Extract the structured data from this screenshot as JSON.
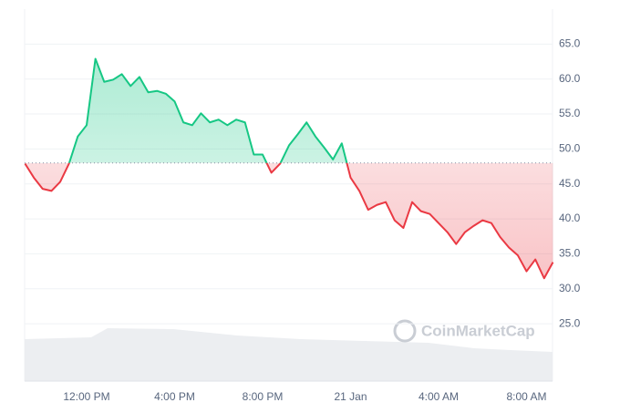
{
  "chart_data": {
    "type": "line",
    "watermark": "CoinMarketCap",
    "categories": [
      null,
      null,
      null,
      null,
      null,
      null,
      null,
      "12:00 PM",
      null,
      null,
      null,
      null,
      null,
      null,
      null,
      null,
      null,
      "4:00 PM",
      null,
      null,
      null,
      null,
      null,
      null,
      null,
      null,
      null,
      "8:00 PM",
      null,
      null,
      null,
      null,
      null,
      null,
      null,
      null,
      null,
      "21 Jan",
      null,
      null,
      null,
      null,
      null,
      null,
      null,
      null,
      null,
      "4:00 AM",
      null,
      null,
      null,
      null,
      null,
      null,
      null,
      null,
      null,
      "8:00 AM",
      null,
      null,
      null
    ],
    "values": [
      47.9,
      45.9,
      44.3,
      44.0,
      45.3,
      47.9,
      51.8,
      53.4,
      62.9,
      59.6,
      59.9,
      60.7,
      59.0,
      60.3,
      58.1,
      58.3,
      57.9,
      56.8,
      53.8,
      53.4,
      55.1,
      53.8,
      54.2,
      53.4,
      54.2,
      53.8,
      49.2,
      49.2,
      46.6,
      47.9,
      50.5,
      52.1,
      53.8,
      51.8,
      50.2,
      48.5,
      50.8,
      45.9,
      44.0,
      41.3,
      42.0,
      42.4,
      39.8,
      38.7,
      42.4,
      41.1,
      40.7,
      39.4,
      38.1,
      36.4,
      38.1,
      39.0,
      39.8,
      39.4,
      37.4,
      35.9,
      34.8,
      32.5,
      34.2,
      31.5,
      33.8
    ],
    "reference_value": 48,
    "up_color": "#16c784",
    "down_color": "#ea3943",
    "ylim": [
      16.8,
      70
    ],
    "yticks": [
      {
        "value": 25,
        "label": "25.0"
      },
      {
        "value": 30,
        "label": "30.0"
      },
      {
        "value": 35,
        "label": "35.0"
      },
      {
        "value": 40,
        "label": "40.0"
      },
      {
        "value": 45,
        "label": "45.0"
      },
      {
        "value": 50,
        "label": "50.0"
      },
      {
        "value": 55,
        "label": "55.0"
      },
      {
        "value": 60,
        "label": "60.0"
      },
      {
        "value": 65,
        "label": "65.0"
      }
    ],
    "grid": true
  }
}
